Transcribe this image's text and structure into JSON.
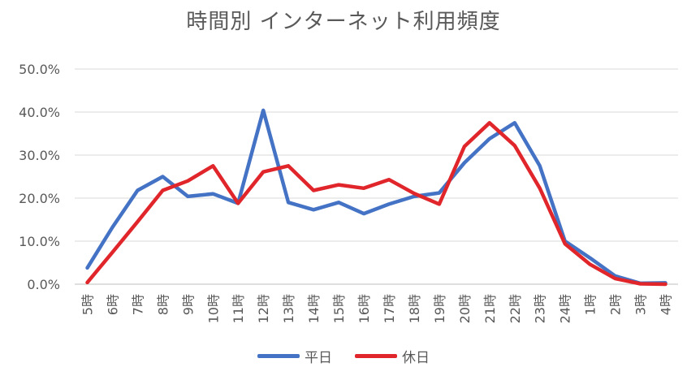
{
  "chart_data": {
    "type": "line",
    "title": "時間別 インターネット利用頻度",
    "categories": [
      "5時",
      "6時",
      "7時",
      "8時",
      "9時",
      "10時",
      "11時",
      "12時",
      "13時",
      "14時",
      "15時",
      "16時",
      "17時",
      "18時",
      "19時",
      "20時",
      "21時",
      "22時",
      "23時",
      "24時",
      "1時",
      "2時",
      "3時",
      "4時"
    ],
    "ylim": [
      0,
      50
    ],
    "yticks": [
      "0.0%",
      "10.0%",
      "20.0%",
      "30.0%",
      "40.0%",
      "50.0%"
    ],
    "grid": true,
    "legend_position": "bottom",
    "series": [
      {
        "name": "平日",
        "color": "#4472c4",
        "values": [
          3.8,
          13.2,
          21.8,
          25.0,
          20.4,
          21.0,
          18.8,
          40.4,
          19.0,
          17.3,
          19.0,
          16.4,
          18.6,
          20.4,
          21.2,
          28.2,
          33.8,
          37.5,
          27.5,
          10.0,
          6.1,
          1.9,
          0.2,
          0.3
        ]
      },
      {
        "name": "休日",
        "color": "#e0262b",
        "values": [
          0.4,
          7.4,
          14.5,
          21.8,
          24.0,
          27.5,
          18.8,
          26.1,
          27.5,
          21.8,
          23.1,
          22.3,
          24.3,
          21.1,
          18.6,
          32.0,
          37.5,
          32.2,
          22.3,
          9.4,
          4.6,
          1.3,
          0.1,
          0.0
        ]
      }
    ]
  }
}
